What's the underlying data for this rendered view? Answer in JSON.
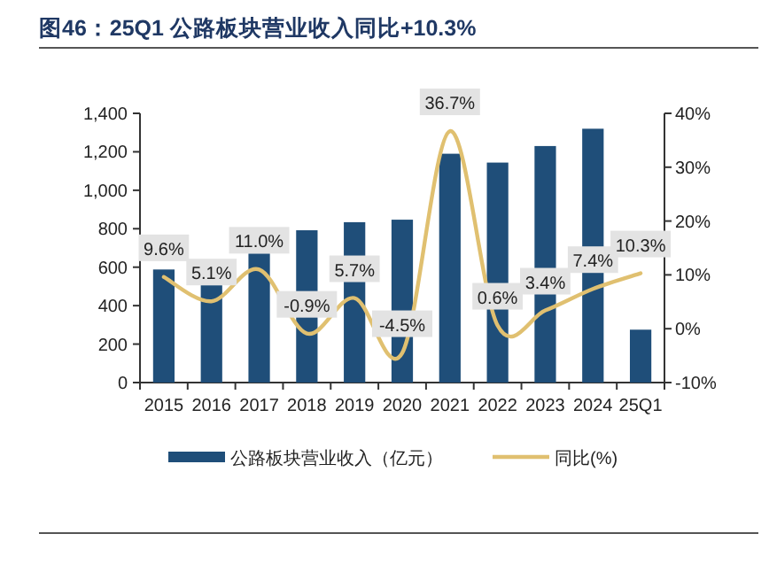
{
  "chart_data": {
    "type": "bar",
    "title": "图46：25Q1 公路板块营业收入同比+10.3%",
    "categories": [
      "2015",
      "2016",
      "2017",
      "2018",
      "2019",
      "2020",
      "2021",
      "2022",
      "2023",
      "2024",
      "25Q1"
    ],
    "series": [
      {
        "name": "公路板块营业收入（亿元）",
        "color": "#1f4e79",
        "values": [
          588,
          506,
          671,
          792,
          834,
          847,
          1190,
          1144,
          1230,
          1320,
          275
        ]
      },
      {
        "name": "同比(%)",
        "color": "#e0c070",
        "type": "line",
        "axis": "y2",
        "values": [
          9.6,
          5.1,
          11.0,
          -0.9,
          5.7,
          -4.5,
          36.7,
          0.6,
          3.4,
          7.4,
          10.3
        ],
        "value_labels": [
          "9.6%",
          "5.1%",
          "11.0%",
          "-0.9%",
          "5.7%",
          "-4.5%",
          "36.7%",
          "0.6%",
          "3.4%",
          "7.4%",
          "10.3%"
        ]
      }
    ],
    "ylim": [
      0,
      1400
    ],
    "yticks": [
      0,
      200,
      400,
      600,
      800,
      {
        "value": 1000,
        "label": "1,000"
      },
      {
        "value": 1200,
        "label": "1,200"
      },
      {
        "value": 1400,
        "label": "1,400"
      }
    ],
    "y2lim": [
      -10,
      40
    ],
    "y2ticks": [
      {
        "value": -10,
        "label": "-10%"
      },
      {
        "value": 0,
        "label": "0%"
      },
      {
        "value": 10,
        "label": "10%"
      },
      {
        "value": 20,
        "label": "20%"
      },
      {
        "value": 30,
        "label": "30%"
      },
      {
        "value": 40,
        "label": "40%"
      }
    ],
    "legend": "bottom",
    "grid": false
  }
}
